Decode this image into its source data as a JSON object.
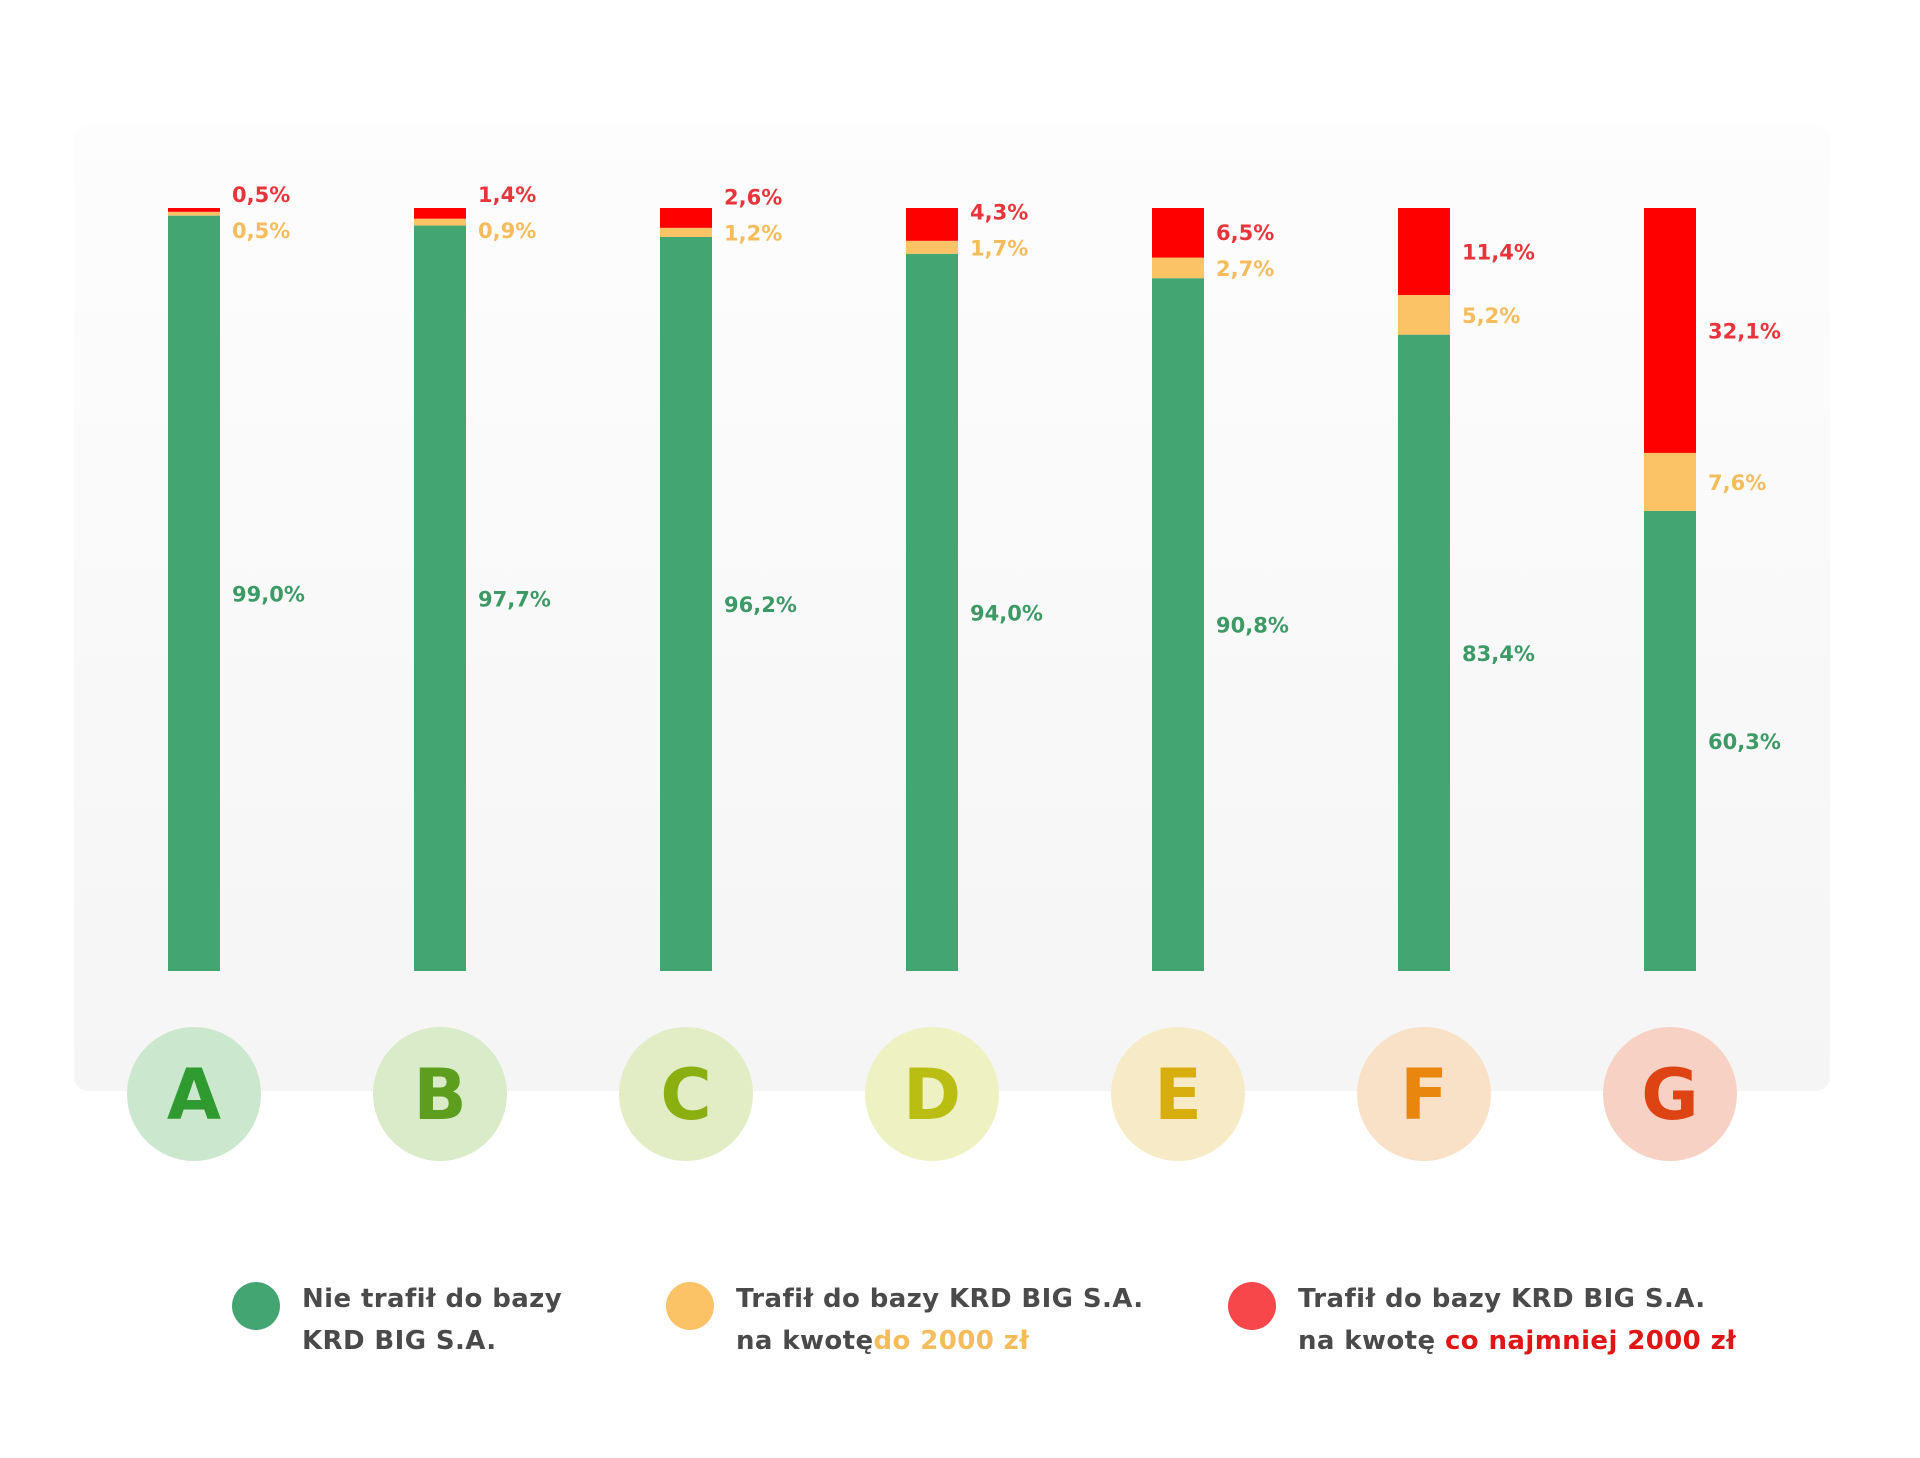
{
  "colors": {
    "green": "#42A572",
    "orange": "#FBC266",
    "red": "#FE0000",
    "green_label": "#3D9A66",
    "orange_label": "#F5BC5C",
    "red_label": "#E8353B",
    "legend_text": "#4a4a4a",
    "legend_red_dot": "#F7474A",
    "legend_red_text": "#E01515"
  },
  "chart_data": {
    "type": "bar",
    "stacked": true,
    "categories": [
      "A",
      "B",
      "C",
      "D",
      "E",
      "F",
      "G"
    ],
    "series": [
      {
        "name": "Nie trafił do bazy KRD BIG S.A.",
        "values": [
          99.0,
          97.7,
          96.2,
          94.0,
          90.8,
          83.4,
          60.3
        ],
        "labels": [
          "99,0%",
          "97,7%",
          "96,2%",
          "94,0%",
          "90,8%",
          "83,4%",
          "60,3%"
        ]
      },
      {
        "name": "Trafił do bazy KRD BIG S.A. na kwotę do 2000 zł",
        "values": [
          0.5,
          0.9,
          1.2,
          1.7,
          2.7,
          5.2,
          7.6
        ],
        "labels": [
          "0,5%",
          "0,9%",
          "1,2%",
          "1,7%",
          "2,7%",
          "5,2%",
          "7,6%"
        ]
      },
      {
        "name": "Trafił do bazy KRD BIG S.A. na kwotę co najmniej 2000 zł",
        "values": [
          0.5,
          1.4,
          2.6,
          4.3,
          6.5,
          11.4,
          32.1
        ],
        "labels": [
          "0,5%",
          "1,4%",
          "2,6%",
          "4,3%",
          "6,5%",
          "11,4%",
          "32,1%"
        ]
      }
    ],
    "ylim": [
      0,
      100
    ],
    "grid": false,
    "legend_position": "bottom",
    "grade_badges": [
      {
        "letter": "A",
        "circle": "#CBE7CD",
        "text": "#2F9A2F"
      },
      {
        "letter": "B",
        "circle": "#D9EBC9",
        "text": "#5E9E1F"
      },
      {
        "letter": "C",
        "circle": "#E2EDC6",
        "text": "#8BAE10"
      },
      {
        "letter": "D",
        "circle": "#EEF2C3",
        "text": "#BABD12"
      },
      {
        "letter": "E",
        "circle": "#F6EBC6",
        "text": "#D8AE0E"
      },
      {
        "letter": "F",
        "circle": "#F8E1C6",
        "text": "#E9860E"
      },
      {
        "letter": "G",
        "circle": "#F6D1C4",
        "text": "#DD4313"
      }
    ]
  },
  "legend": {
    "item1": {
      "line1": "Nie trafił do bazy",
      "line2": "KRD BIG S.A."
    },
    "item2": {
      "line1": "Trafił do bazy KRD BIG S.A.",
      "line2_prefix": "na kwotę",
      "line2_highlight": "do 2000 zł"
    },
    "item3": {
      "line1": "Trafił do bazy KRD BIG S.A.",
      "line2_prefix": "na kwotę ",
      "line2_highlight": "co najmniej 2000 zł"
    }
  }
}
